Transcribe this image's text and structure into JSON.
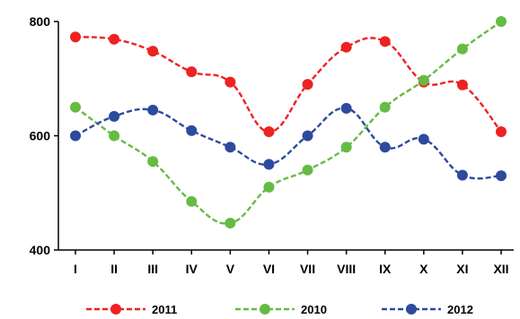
{
  "chart_data": {
    "type": "line",
    "categories": [
      "I",
      "II",
      "III",
      "IV",
      "V",
      "VI",
      "VII",
      "VIII",
      "IX",
      "X",
      "XI",
      "XII"
    ],
    "ylim": [
      400,
      800
    ],
    "y_ticks": [
      400,
      600,
      800
    ],
    "y_tick_labels": [
      "400",
      "600",
      "800"
    ],
    "grid": false,
    "legend_position": "bottom",
    "line_style": "dashed, smoothed, circle markers",
    "series": [
      {
        "name": "2011",
        "color": "#ee2222",
        "values": [
          773,
          769,
          748,
          712,
          694,
          607,
          690,
          755,
          765,
          694,
          689,
          607
        ]
      },
      {
        "name": "2010",
        "color": "#66bb44",
        "values": [
          650,
          600,
          555,
          485,
          447,
          510,
          540,
          580,
          650,
          697,
          752,
          800
        ]
      },
      {
        "name": "2012",
        "color": "#2d4a9e",
        "values": [
          600,
          634,
          645,
          609,
          580,
          550,
          600,
          648,
          580,
          594,
          531,
          530
        ]
      }
    ]
  }
}
